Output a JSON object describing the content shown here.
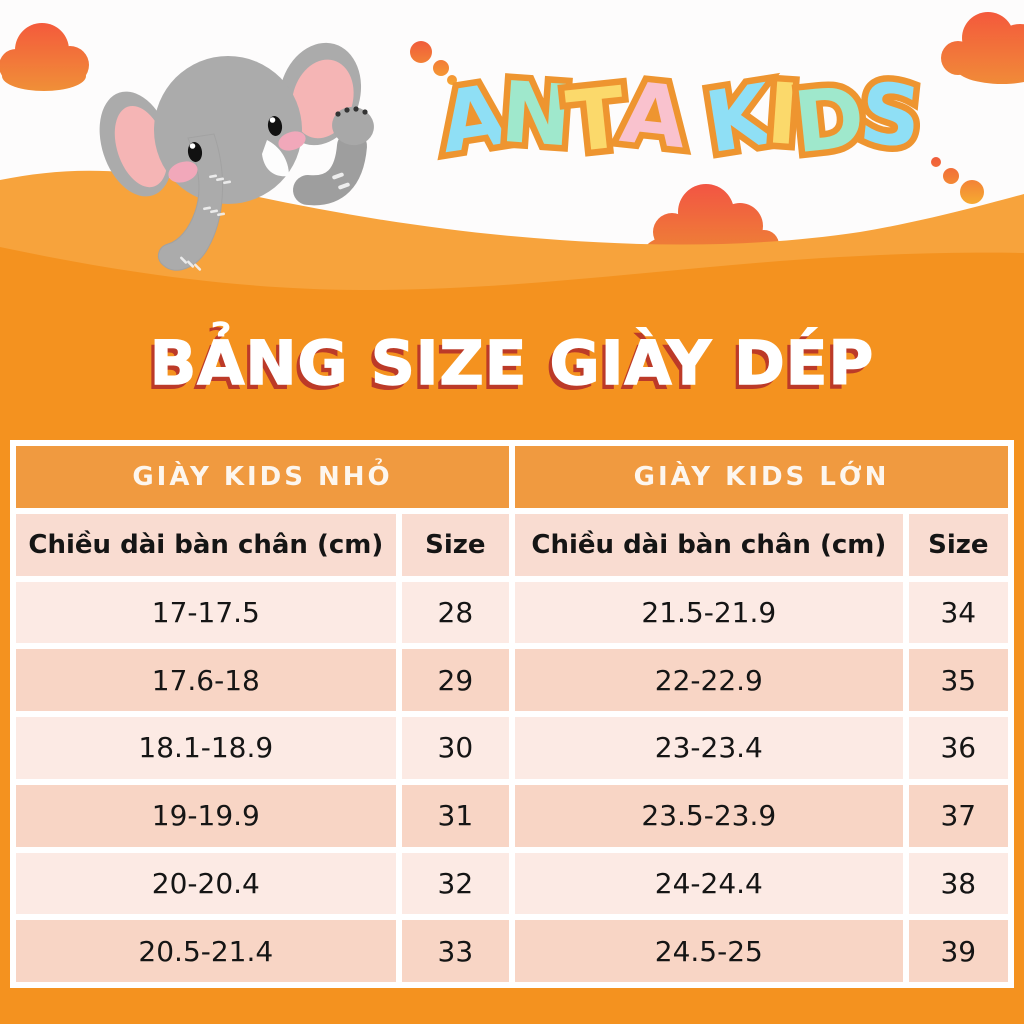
{
  "logo": {
    "text": "ANTA KIDS",
    "word1": [
      {
        "ch": "A",
        "color": "#8FDFF5"
      },
      {
        "ch": "N",
        "color": "#9FE8CC"
      },
      {
        "ch": "T",
        "color": "#FBD96B"
      },
      {
        "ch": "A",
        "color": "#F9C2CE"
      }
    ],
    "word2": [
      {
        "ch": "K",
        "color": "#8FDFF5"
      },
      {
        "ch": "I",
        "color": "#FBD96B"
      },
      {
        "ch": "D",
        "color": "#9FE8CC"
      },
      {
        "ch": "S",
        "color": "#8FDFF5"
      }
    ]
  },
  "title": "BẢNG SIZE GIÀY DÉP",
  "size_table": {
    "left_header": "GIÀY KIDS NHỎ",
    "right_header": "GIÀY KIDS LỚN",
    "length_column_label": "Chiều dài bàn chân (cm)",
    "size_column_label": "Size",
    "left_rows": [
      {
        "length": "17-17.5",
        "size": "28"
      },
      {
        "length": "17.6-18",
        "size": "29"
      },
      {
        "length": "18.1-18.9",
        "size": "30"
      },
      {
        "length": "19-19.9",
        "size": "31"
      },
      {
        "length": "20-20.4",
        "size": "32"
      },
      {
        "length": "20.5-21.4",
        "size": "33"
      }
    ],
    "right_rows": [
      {
        "length": "21.5-21.9",
        "size": "34"
      },
      {
        "length": "22-22.9",
        "size": "35"
      },
      {
        "length": "23-23.4",
        "size": "36"
      },
      {
        "length": "23.5-23.9",
        "size": "37"
      },
      {
        "length": "24-24.4",
        "size": "38"
      },
      {
        "length": "24.5-25",
        "size": "39"
      }
    ]
  },
  "colors": {
    "page_orange": "#F4921F",
    "hill_light_orange": "#F7A33C",
    "table_header_orange": "#F09A40",
    "table_header_pink": "#F9DCD1",
    "row_light_pink": "#FCEAE4",
    "row_dark_pink": "#F8D5C5",
    "title_text": "#FFFFFF",
    "title_shadow_red": "#BC3A28",
    "logo_outline_orange": "#EE9530",
    "cloud_red_orange": "#F4583C",
    "elephant_gray": "#ABABAB",
    "ear_pink": "#F5B5B5"
  }
}
